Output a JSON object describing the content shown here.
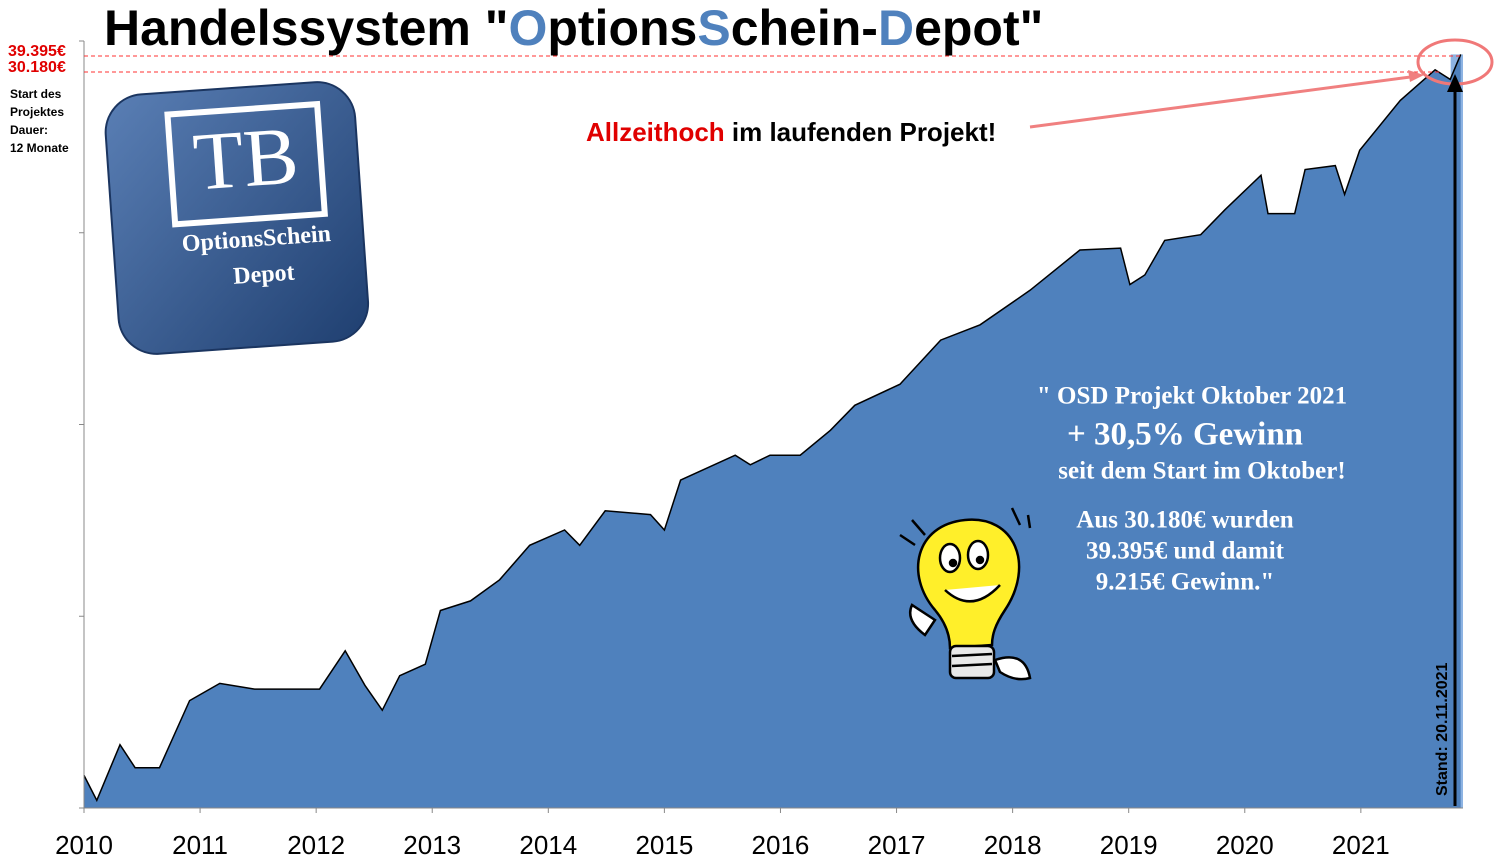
{
  "chart_data": {
    "type": "area",
    "title": [
      "Handelssystem \"",
      "O",
      "ptions",
      "S",
      "chein-",
      "D",
      "epot\""
    ],
    "title_colors": [
      "#000000",
      "#4f81bd",
      "#000000",
      "#4f81bd",
      "#000000",
      "#4f81bd",
      "#000000"
    ],
    "x": [
      2010.0,
      2010.11,
      2010.31,
      2010.44,
      2010.65,
      2010.91,
      2011.17,
      2011.47,
      2012.03,
      2012.25,
      2012.42,
      2012.57,
      2012.72,
      2012.94,
      2013.07,
      2013.33,
      2013.58,
      2013.84,
      2014.14,
      2014.27,
      2014.49,
      2014.88,
      2015.0,
      2015.14,
      2015.61,
      2015.74,
      2015.91,
      2016.17,
      2016.43,
      2016.64,
      2017.03,
      2017.38,
      2017.72,
      2018.15,
      2018.58,
      2018.93,
      2019.01,
      2019.14,
      2019.31,
      2019.62,
      2019.83,
      2020.14,
      2020.2,
      2020.43,
      2020.52,
      2020.78,
      2020.86,
      2020.99,
      2021.34,
      2021.64,
      2021.77,
      2021.86
    ],
    "values": [
      0.17,
      0.04,
      0.33,
      0.21,
      0.21,
      0.56,
      0.65,
      0.62,
      0.62,
      0.82,
      0.64,
      0.51,
      0.69,
      0.75,
      1.03,
      1.08,
      1.19,
      1.37,
      1.45,
      1.37,
      1.55,
      1.53,
      1.45,
      1.71,
      1.84,
      1.79,
      1.84,
      1.84,
      1.97,
      2.1,
      2.21,
      2.44,
      2.52,
      2.7,
      2.91,
      2.92,
      2.73,
      2.78,
      2.96,
      2.99,
      3.12,
      3.3,
      3.1,
      3.1,
      3.33,
      3.35,
      3.2,
      3.43,
      3.69,
      3.85,
      3.8,
      3.93
    ],
    "color": "#4f81bd",
    "xlim": [
      2010,
      2021.88
    ],
    "xticks": [
      2010,
      2011,
      2012,
      2013,
      2014,
      2015,
      2016,
      2017,
      2018,
      2019,
      2020,
      2021
    ],
    "ylim": [
      0,
      4
    ],
    "yticks": [
      0,
      1,
      2,
      3,
      4
    ],
    "annotations": {
      "high": "39.395€",
      "start": "30.180€",
      "project_note": [
        "Start des",
        "Projektes",
        "Dauer:",
        "12 Monate"
      ],
      "ath_red": "Allzeithoch",
      "ath_rest": " im laufenden Projekt!",
      "logo": [
        "TB",
        "OptionsSchein",
        "Depot"
      ],
      "box": [
        "\" OSD Projekt Oktober 2021",
        "+  30,5% Gewinn",
        "seit dem Start im Oktober!",
        "Aus 30.180€ wurden",
        "39.395€ und damit",
        "9.215€ Gewinn.\""
      ],
      "date": "Stand:  20.11.2021"
    }
  }
}
